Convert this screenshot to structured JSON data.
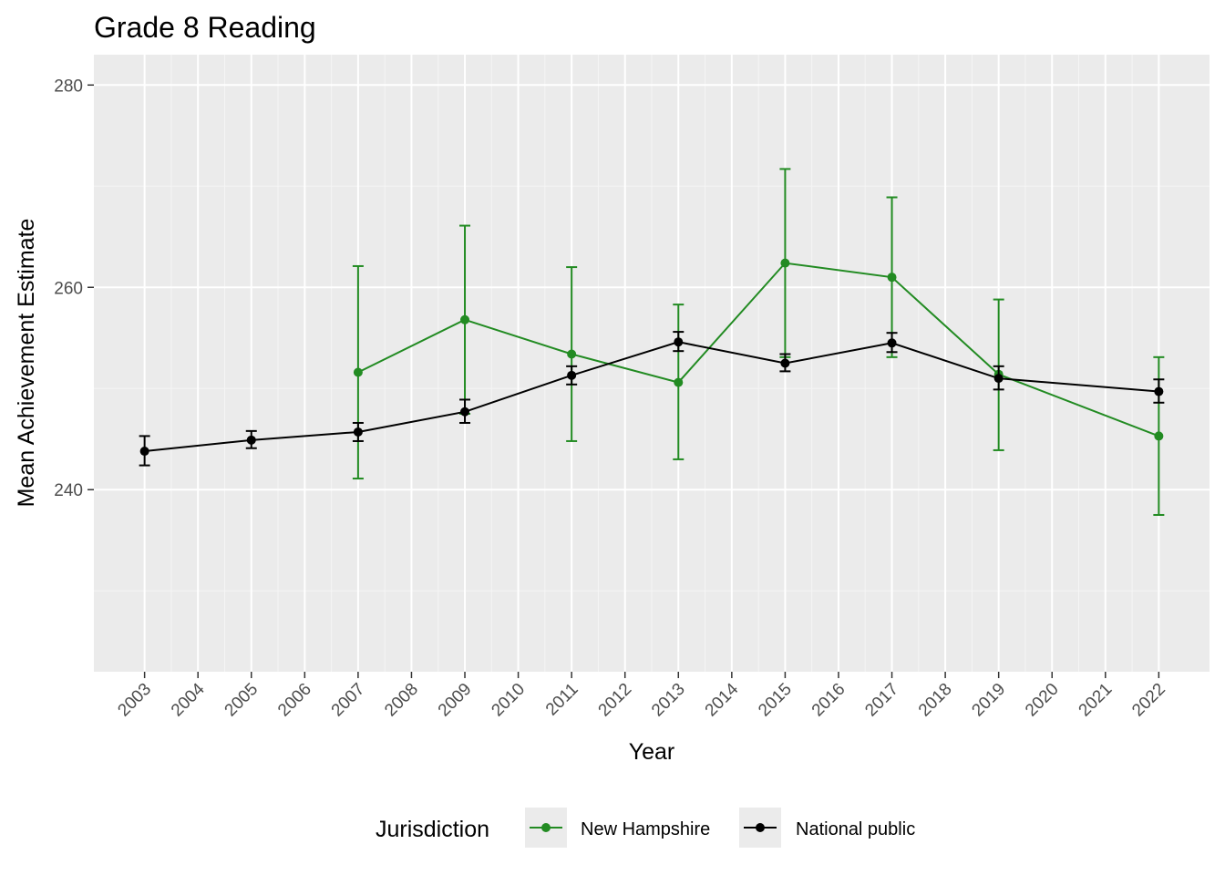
{
  "chart_data": {
    "type": "line",
    "title": "Grade 8 Reading",
    "xlabel": "Year",
    "ylabel": "Mean Achievement Estimate",
    "x": [
      2003,
      2004,
      2005,
      2006,
      2007,
      2008,
      2009,
      2010,
      2011,
      2012,
      2013,
      2014,
      2015,
      2016,
      2017,
      2018,
      2019,
      2020,
      2021,
      2022
    ],
    "x_tick_labels": [
      "2003",
      "2004",
      "2005",
      "2006",
      "2007",
      "2008",
      "2009",
      "2010",
      "2011",
      "2012",
      "2013",
      "2014",
      "2015",
      "2016",
      "2017",
      "2018",
      "2019",
      "2020",
      "2021",
      "2022"
    ],
    "ylim": [
      222,
      283
    ],
    "y_ticks": [
      240,
      260,
      280
    ],
    "y_tick_labels": [
      "240",
      "260",
      "280"
    ],
    "grid": true,
    "legend_title": "Jurisdiction",
    "legend_position": "bottom",
    "series": [
      {
        "name": "New Hampshire",
        "color": "#228b22",
        "points": [
          {
            "x": 2007,
            "y": 251.6,
            "lo": 241.1,
            "hi": 262.1
          },
          {
            "x": 2009,
            "y": 256.8,
            "lo": 247.5,
            "hi": 266.1
          },
          {
            "x": 2011,
            "y": 253.4,
            "lo": 244.8,
            "hi": 262.0
          },
          {
            "x": 2013,
            "y": 250.6,
            "lo": 243.0,
            "hi": 258.3
          },
          {
            "x": 2015,
            "y": 262.4,
            "lo": 253.1,
            "hi": 271.7
          },
          {
            "x": 2017,
            "y": 261.0,
            "lo": 253.1,
            "hi": 268.9
          },
          {
            "x": 2019,
            "y": 251.4,
            "lo": 243.9,
            "hi": 258.8
          },
          {
            "x": 2022,
            "y": 245.3,
            "lo": 237.5,
            "hi": 253.1
          }
        ]
      },
      {
        "name": "National public",
        "color": "#000000",
        "points": [
          {
            "x": 2003,
            "y": 243.8,
            "lo": 242.4,
            "hi": 245.3
          },
          {
            "x": 2005,
            "y": 244.9,
            "lo": 244.1,
            "hi": 245.8
          },
          {
            "x": 2007,
            "y": 245.7,
            "lo": 244.8,
            "hi": 246.6
          },
          {
            "x": 2009,
            "y": 247.7,
            "lo": 246.6,
            "hi": 248.9
          },
          {
            "x": 2011,
            "y": 251.3,
            "lo": 250.4,
            "hi": 252.2
          },
          {
            "x": 2013,
            "y": 254.6,
            "lo": 253.7,
            "hi": 255.6
          },
          {
            "x": 2015,
            "y": 252.5,
            "lo": 251.7,
            "hi": 253.4
          },
          {
            "x": 2017,
            "y": 254.5,
            "lo": 253.6,
            "hi": 255.5
          },
          {
            "x": 2019,
            "y": 251.0,
            "lo": 249.9,
            "hi": 252.2
          },
          {
            "x": 2022,
            "y": 249.7,
            "lo": 248.6,
            "hi": 250.9
          }
        ]
      }
    ]
  },
  "colors": {
    "panel_background": "#ebebeb",
    "grid_major": "#ffffff",
    "grid_minor": "#f5f5f5",
    "tick_text": "#4d4d4d"
  }
}
